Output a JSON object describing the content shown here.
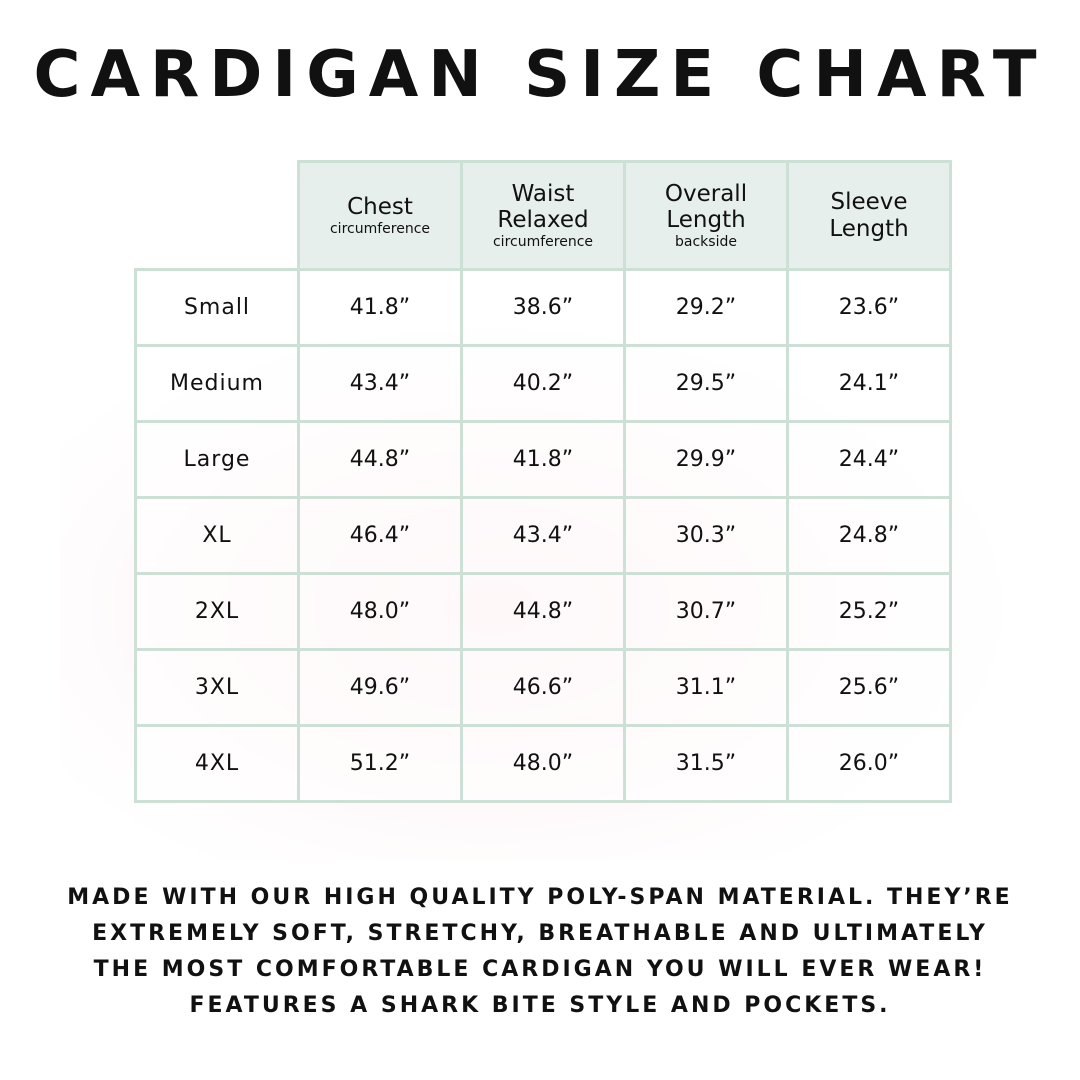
{
  "title": "CARDIGAN SIZE CHART",
  "colors": {
    "header_bg": "#e6efeb",
    "border": "#cde0d6",
    "text": "#111111"
  },
  "table": {
    "columns": [
      {
        "label": "Chest",
        "sub": "circumference"
      },
      {
        "label": "Waist Relaxed",
        "sub": "circumference"
      },
      {
        "label": "Overall Length",
        "sub": "backside"
      },
      {
        "label": "Sleeve Length",
        "sub": ""
      }
    ],
    "rows": [
      {
        "size": "Small",
        "values": [
          "41.8”",
          "38.6”",
          "29.2”",
          "23.6”"
        ]
      },
      {
        "size": "Medium",
        "values": [
          "43.4”",
          "40.2”",
          "29.5”",
          "24.1”"
        ]
      },
      {
        "size": "Large",
        "values": [
          "44.8”",
          "41.8”",
          "29.9”",
          "24.4”"
        ]
      },
      {
        "size": "XL",
        "values": [
          "46.4”",
          "43.4”",
          "30.3”",
          "24.8”"
        ]
      },
      {
        "size": "2XL",
        "values": [
          "48.0”",
          "44.8”",
          "30.7”",
          "25.2”"
        ]
      },
      {
        "size": "3XL",
        "values": [
          "49.6”",
          "46.6”",
          "31.1”",
          "25.6”"
        ]
      },
      {
        "size": "4XL",
        "values": [
          "51.2”",
          "48.0”",
          "31.5”",
          "26.0”"
        ]
      }
    ]
  },
  "description": [
    "MADE WITH OUR HIGH QUALITY POLY-SPAN MATERIAL. THEY’RE",
    "EXTREMELY SOFT, STRETCHY, BREATHABLE AND ULTIMATELY",
    "THE MOST COMFORTABLE CARDIGAN YOU WILL EVER WEAR!",
    "FEATURES A SHARK BITE STYLE AND POCKETS."
  ]
}
